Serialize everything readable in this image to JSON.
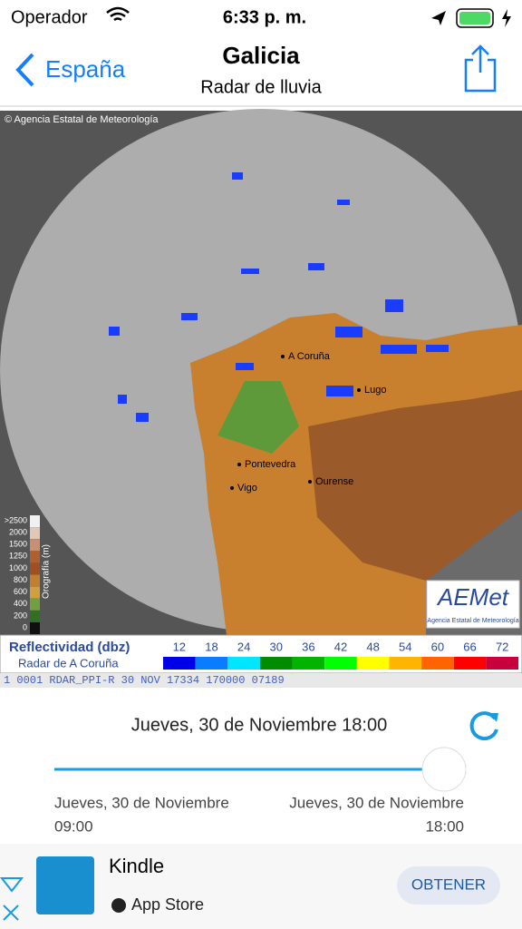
{
  "status_bar": {
    "carrier": "Operador",
    "time": "6:33 p. m."
  },
  "nav": {
    "back": "España",
    "title": "Galicia",
    "subtitle": "Radar de lluvia"
  },
  "radar": {
    "credit": "© Agencia Estatal de Meteorología",
    "cities": [
      "A Coruña",
      "Lugo",
      "Pontevedra",
      "Vigo",
      "Ourense"
    ],
    "orography_label": "Orografía (m)",
    "orography_ticks": [
      ">2500",
      "2000",
      "1500",
      "1250",
      "1000",
      "800",
      "600",
      "400",
      "200",
      "0"
    ],
    "legend_title": "Reflectividad (dbz)",
    "legend_subtitle": "Radar de A Coruña",
    "legend_values": [
      12,
      18,
      24,
      30,
      36,
      42,
      48,
      54,
      60,
      66,
      72
    ],
    "info_line": "1 0001 RDAR_PPI-R   30 NOV 17334 170000 07189",
    "logo": "AEMet",
    "logo_caption": "Agencia Estatal de Meteorología"
  },
  "timeline": {
    "current": "Jueves, 30 de Noviembre 18:00",
    "start_date": "Jueves, 30 de Noviembre",
    "start_time": "09:00",
    "end_date": "Jueves, 30 de Noviembre",
    "end_time": "18:00"
  },
  "ad": {
    "app": "Kindle",
    "store": "App Store",
    "button": "OBTENER"
  }
}
